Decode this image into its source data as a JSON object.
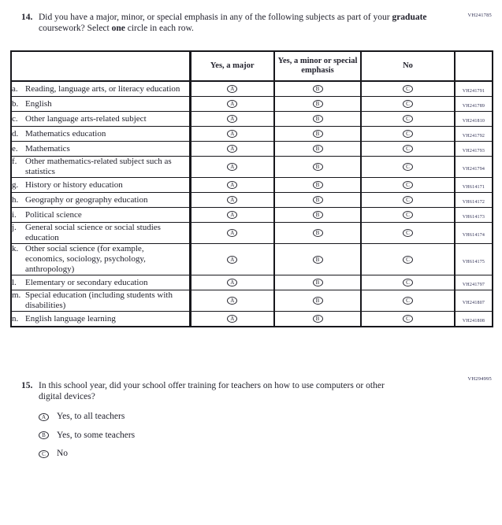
{
  "q14": {
    "code": "VH241785",
    "number": "14.",
    "text_segments": {
      "s1": "Did you have a major, minor, or special emphasis in any of the following subjects as part of your ",
      "s2_bold": "graduate",
      "s3": " coursework? Select ",
      "s4_bold": "one",
      "s5": " circle in each row."
    },
    "table": {
      "headers": {
        "major": "Yes, a major",
        "minor": "Yes, a minor or special emphasis",
        "no": "No"
      },
      "option_letters": [
        "A",
        "B",
        "C"
      ],
      "rows": [
        {
          "letter": "a.",
          "label": "Reading, language arts, or literacy education",
          "code": "VH241791"
        },
        {
          "letter": "b.",
          "label": "English",
          "code": "VH241789"
        },
        {
          "letter": "c.",
          "label": "Other language arts-related subject",
          "code": "VH241810"
        },
        {
          "letter": "d.",
          "label": "Mathematics education",
          "code": "VH241792"
        },
        {
          "letter": "e.",
          "label": "Mathematics",
          "code": "VH241793"
        },
        {
          "letter": "f.",
          "label": "Other mathematics-related subject such as statistics",
          "code": "VH241794"
        },
        {
          "letter": "g.",
          "label": "History or history education",
          "code": "VH614171"
        },
        {
          "letter": "h.",
          "label": "Geography or geography education",
          "code": "VH614172"
        },
        {
          "letter": "i.",
          "label": "Political science",
          "code": "VH614173"
        },
        {
          "letter": "j.",
          "label": "General social science or social studies education",
          "code": "VH614174"
        },
        {
          "letter": "k.",
          "label": "Other social science (for example, economics, sociology, psychology, anthropology)",
          "code": "VH614175"
        },
        {
          "letter": "l.",
          "label": "Elementary or secondary education",
          "code": "VH241797"
        },
        {
          "letter": "m.",
          "label": "Special education (including students with disabilities)",
          "code": "VH241807"
        },
        {
          "letter": "n.",
          "label": "English language learning",
          "code": "VH241808"
        }
      ]
    }
  },
  "q15": {
    "code": "VH294995",
    "number": "15.",
    "text": "In this school year, did your school offer training for teachers on how to use computers or other digital devices?",
    "options": [
      {
        "letter": "A",
        "label": "Yes, to all teachers"
      },
      {
        "letter": "B",
        "label": "Yes, to some teachers"
      },
      {
        "letter": "C",
        "label": "No"
      }
    ]
  },
  "colors": {
    "ink": "#23232e",
    "code_ink": "#2d2d52",
    "border": "#17171c",
    "background": "#ffffff"
  }
}
